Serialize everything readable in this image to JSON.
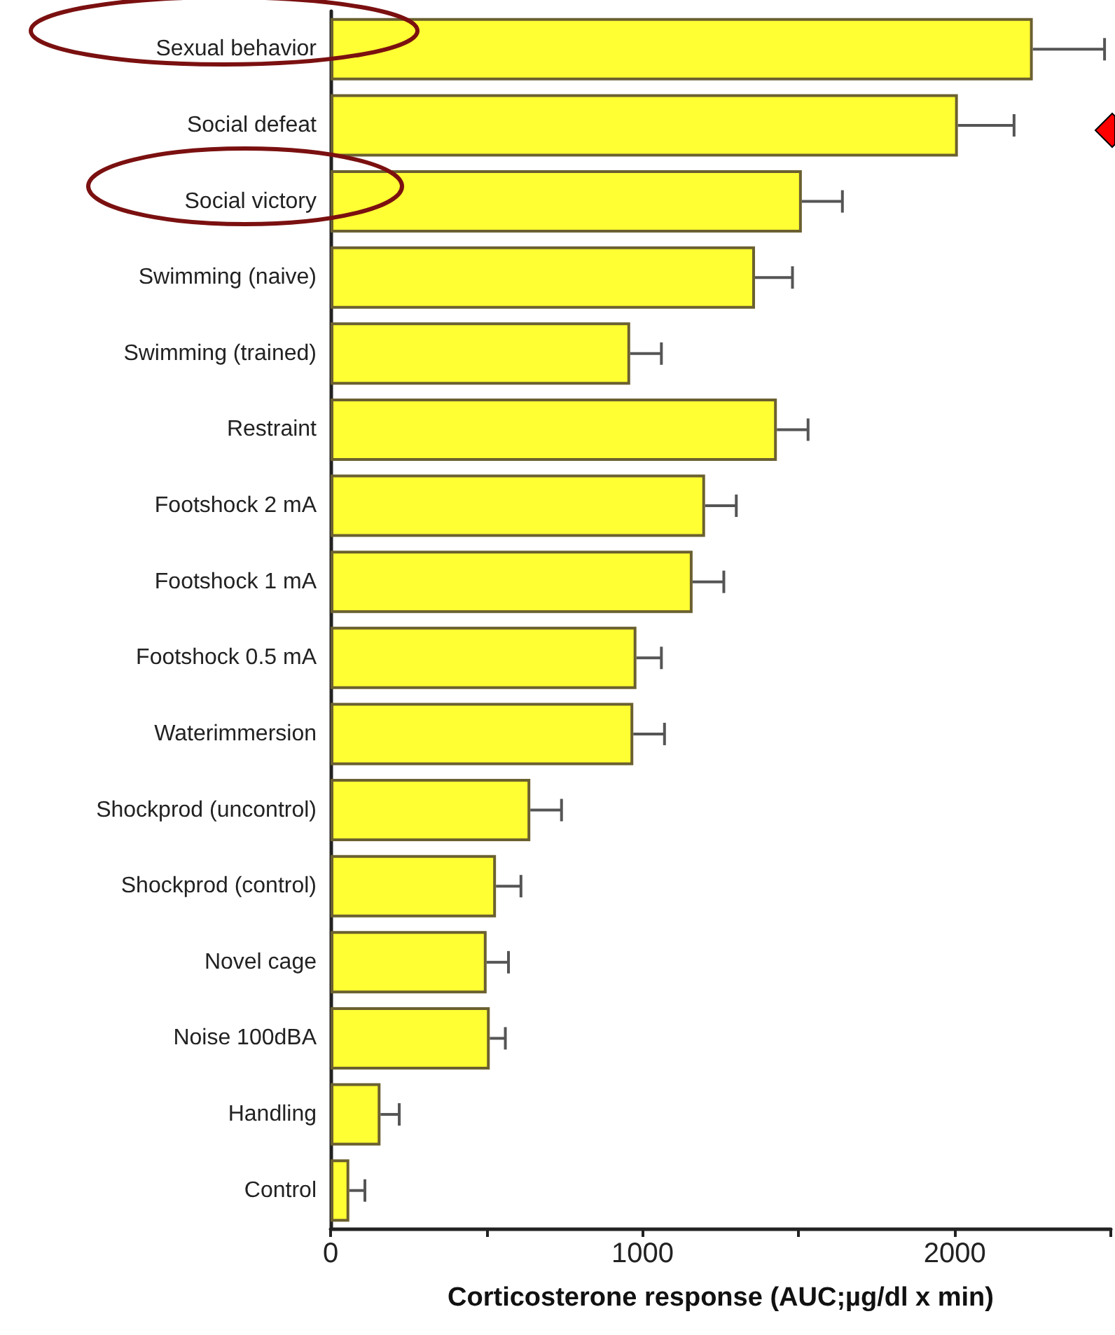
{
  "chart_data": {
    "type": "bar",
    "orientation": "horizontal",
    "xlabel": "Corticosterone response (AUC;µg/dl x min)",
    "categories": [
      "Sexual behavior",
      "Social defeat",
      "Social victory",
      "Swimming (naive)",
      "Swimming (trained)",
      "Restraint",
      "Footshock 2 mA",
      "Footshock 1 mA",
      "Footshock 0.5 mA",
      "Waterimmersion",
      "Shockprod (uncontrol)",
      "Shockprod (control)",
      "Novel cage",
      "Noise 100dBA",
      "Handling",
      "Control"
    ],
    "values": [
      2250,
      2010,
      1510,
      1360,
      960,
      1430,
      1200,
      1160,
      980,
      970,
      640,
      530,
      500,
      510,
      160,
      60
    ],
    "errors": [
      [
        2250,
        2480
      ],
      [
        2010,
        2190
      ],
      [
        1510,
        1640
      ],
      [
        1360,
        1480
      ],
      [
        960,
        1060
      ],
      [
        1430,
        1530
      ],
      [
        1200,
        1300
      ],
      [
        1160,
        1260
      ],
      [
        980,
        1060
      ],
      [
        970,
        1070
      ],
      [
        640,
        740
      ],
      [
        530,
        610
      ],
      [
        500,
        570
      ],
      [
        510,
        560
      ],
      [
        160,
        220
      ],
      [
        60,
        110
      ]
    ],
    "color": "#ffff33",
    "xlim": [
      0,
      2500
    ],
    "xticks": [
      0,
      {
        "value": 500,
        "label": null
      },
      1000,
      {
        "value": 1500,
        "label": null
      },
      2000,
      {
        "value": 2500,
        "label": null
      }
    ],
    "grid": false
  }
}
